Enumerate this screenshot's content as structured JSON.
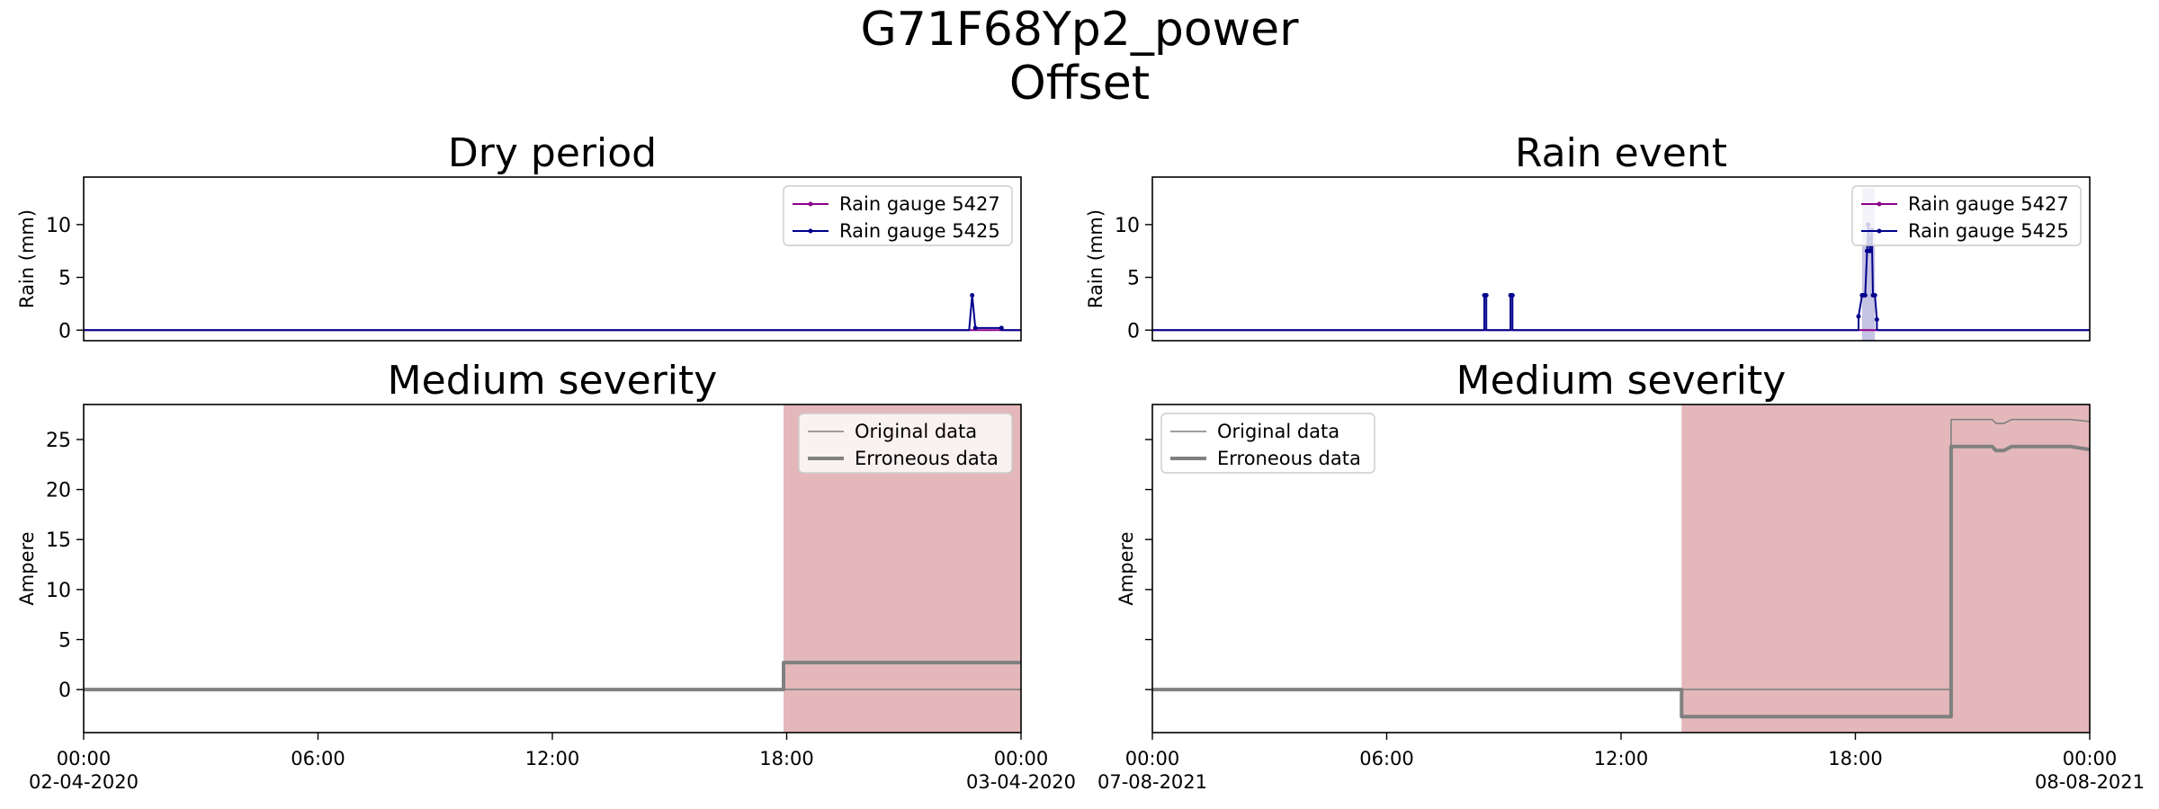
{
  "figure": {
    "title_line1": "G71F68Yp2_power",
    "title_line2": "Offset"
  },
  "colors": {
    "gauge_5427": "#8b008b",
    "gauge_5425": "#00008b",
    "original": "#808080",
    "erroneous": "#808080",
    "error_shade": "#e4b8ba",
    "rain_shade": "#c5c3e3"
  },
  "chart_data": [
    {
      "type": "line",
      "title": "Dry period",
      "ylabel": "Rain (mm)",
      "xlim": [
        0,
        24
      ],
      "ylim": [
        -1,
        14.5
      ],
      "yticks": [
        0,
        5,
        10
      ],
      "legend": {
        "position": "top-right",
        "entries": [
          "Rain gauge 5427",
          "Rain gauge 5425"
        ]
      },
      "series": [
        {
          "name": "Rain gauge 5427",
          "x": [
            0,
            24
          ],
          "y": [
            0,
            0
          ]
        },
        {
          "name": "Rain gauge 5425",
          "x": [
            0,
            22.67,
            22.75,
            22.83,
            23.5,
            23.5,
            24
          ],
          "y": [
            0,
            0,
            3.3,
            0.2,
            0.2,
            0,
            0
          ]
        }
      ]
    },
    {
      "type": "line",
      "title": "Rain event",
      "ylabel": "Rain (mm)",
      "xlim": [
        0,
        24
      ],
      "ylim": [
        -1,
        14.5
      ],
      "yticks": [
        0,
        5,
        10
      ],
      "legend": {
        "position": "top-right",
        "entries": [
          "Rain gauge 5427",
          "Rain gauge 5425"
        ]
      },
      "shaded_x": [
        18.17,
        18.5
      ],
      "series": [
        {
          "name": "Rain gauge 5427",
          "x": [
            0,
            18.25,
            18.33,
            18.5,
            24
          ],
          "y": [
            0,
            0,
            0,
            0,
            0
          ]
        },
        {
          "name": "Rain gauge 5425",
          "x": [
            0,
            8.5,
            8.5,
            8.55,
            8.55,
            9.17,
            9.17,
            9.22,
            9.22,
            18.08,
            18.08,
            18.17,
            18.2,
            18.25,
            18.3,
            18.33,
            18.37,
            18.42,
            18.45,
            18.5,
            18.55,
            18.55,
            24
          ],
          "y": [
            0,
            0,
            3.3,
            3.3,
            0,
            0,
            3.3,
            3.3,
            0,
            0,
            1.3,
            3.3,
            3.3,
            3.3,
            7.5,
            10,
            7.5,
            9.5,
            3.3,
            3.3,
            1.0,
            0,
            0
          ]
        }
      ]
    },
    {
      "type": "line",
      "title": "Medium severity",
      "ylabel": "Ampere",
      "xlim": [
        0,
        24
      ],
      "ylim": [
        -4.3,
        28.5
      ],
      "yticks": [
        0,
        5,
        10,
        15,
        20,
        25
      ],
      "xticks": [
        "00:00",
        "06:00",
        "12:00",
        "18:00",
        "00:00"
      ],
      "date_start": "02-04-2020",
      "date_end": "03-04-2020",
      "legend": {
        "position": "top-right",
        "entries": [
          "Original data",
          "Erroneous data"
        ]
      },
      "error_region": [
        17.92,
        24
      ],
      "series": [
        {
          "name": "Original data",
          "x": [
            0,
            24
          ],
          "y": [
            0,
            0
          ]
        },
        {
          "name": "Erroneous data",
          "x": [
            0,
            17.92,
            17.92,
            24
          ],
          "y": [
            0,
            0,
            2.7,
            2.7
          ]
        }
      ]
    },
    {
      "type": "line",
      "title": "Medium severity",
      "ylabel": "Ampere",
      "xlim": [
        0,
        24
      ],
      "ylim": [
        -4.3,
        28.5
      ],
      "yticks": [
        0,
        5,
        10,
        15,
        20,
        25
      ],
      "xticks": [
        "00:00",
        "06:00",
        "12:00",
        "18:00",
        "00:00"
      ],
      "date_start": "07-08-2021",
      "date_end": "08-08-2021",
      "legend": {
        "position": "top-left",
        "entries": [
          "Original data",
          "Erroneous data"
        ]
      },
      "error_region": [
        13.55,
        24
      ],
      "series": [
        {
          "name": "Original data",
          "x": [
            0,
            20.45,
            20.45,
            21.5,
            21.6,
            21.8,
            22.0,
            23.5,
            24
          ],
          "y": [
            0,
            0,
            27,
            27,
            26.6,
            26.6,
            27,
            27,
            26.8
          ]
        },
        {
          "name": "Erroneous data",
          "x": [
            0,
            13.55,
            13.55,
            20.45,
            20.45,
            21.5,
            21.6,
            21.8,
            22.0,
            23.5,
            24
          ],
          "y": [
            0,
            0,
            -2.7,
            -2.7,
            24.3,
            24.3,
            23.9,
            23.9,
            24.3,
            24.3,
            24.0
          ]
        }
      ]
    }
  ]
}
